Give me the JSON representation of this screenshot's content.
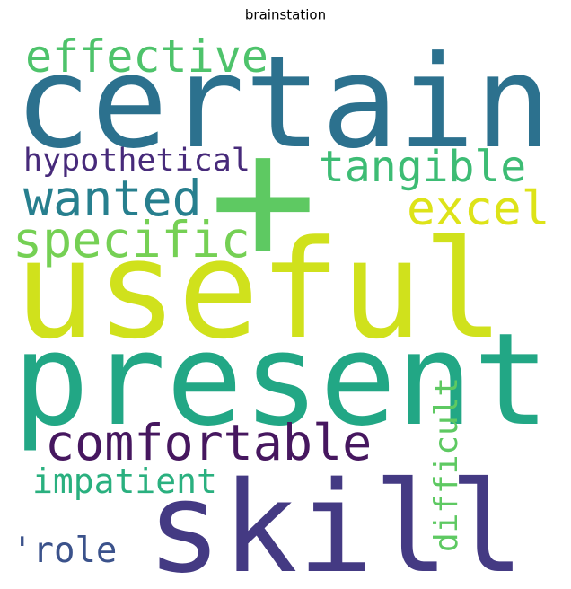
{
  "chart_data": {
    "type": "wordcloud",
    "title": "brainstation",
    "words": [
      {
        "text": "certain",
        "color": "#2c718e"
      },
      {
        "text": "useful",
        "color": "#d0e11c"
      },
      {
        "text": "present",
        "color": "#22a785"
      },
      {
        "text": "skill",
        "color": "#443a83"
      },
      {
        "text": "+",
        "color": "#5ec962"
      },
      {
        "text": "effective",
        "color": "#4ec36b"
      },
      {
        "text": "hypothetical",
        "color": "#472a7a"
      },
      {
        "text": "tangible",
        "color": "#3dbc74"
      },
      {
        "text": "wanted",
        "color": "#277f8e"
      },
      {
        "text": "excel",
        "color": "#dde318"
      },
      {
        "text": "specific",
        "color": "#75d054"
      },
      {
        "text": "comfortable",
        "color": "#46175f"
      },
      {
        "text": "impatient",
        "color": "#2ab07f"
      },
      {
        "text": "'role",
        "color": "#3b528b"
      },
      {
        "text": "difficult",
        "color": "#5ec962"
      }
    ]
  }
}
